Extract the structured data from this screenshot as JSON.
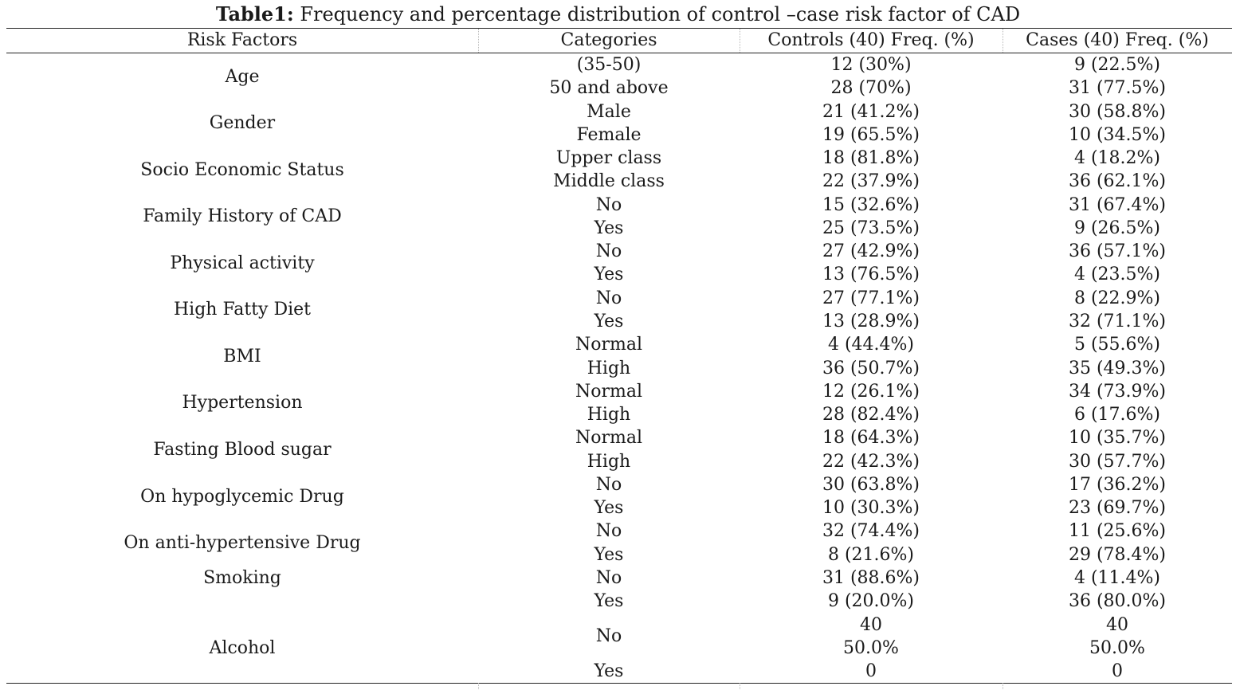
{
  "table": {
    "caption_label": "Table1:",
    "caption_text": " Frequency and percentage distribution of control –case risk factor of CAD",
    "headers": [
      "Risk Factors",
      "Categories",
      "Controls (40) Freq. (%)",
      "Cases (40) Freq. (%)"
    ],
    "groups": [
      {
        "factor": "Age",
        "rows": [
          {
            "category": "(35-50)",
            "controls": "12 (30%)",
            "cases": "9 (22.5%)"
          },
          {
            "category": "50 and above",
            "controls": "28 (70%)",
            "cases": "31 (77.5%)"
          }
        ]
      },
      {
        "factor": "Gender",
        "rows": [
          {
            "category": "Male",
            "controls": "21 (41.2%)",
            "cases": "30 (58.8%)"
          },
          {
            "category": "Female",
            "controls": "19 (65.5%)",
            "cases": "10 (34.5%)"
          }
        ]
      },
      {
        "factor": "Socio Economic Status",
        "rows": [
          {
            "category": "Upper class",
            "controls": "18 (81.8%)",
            "cases": "4 (18.2%)"
          },
          {
            "category": "Middle class",
            "controls": "22 (37.9%)",
            "cases": "36 (62.1%)"
          }
        ]
      },
      {
        "factor": "Family History of CAD",
        "rows": [
          {
            "category": "No",
            "controls": "15 (32.6%)",
            "cases": "31 (67.4%)"
          },
          {
            "category": "Yes",
            "controls": "25 (73.5%)",
            "cases": "9 (26.5%)"
          }
        ]
      },
      {
        "factor": "Physical activity",
        "rows": [
          {
            "category": "No",
            "controls": "27 (42.9%)",
            "cases": "36 (57.1%)"
          },
          {
            "category": "Yes",
            "controls": "13 (76.5%)",
            "cases": "4 (23.5%)"
          }
        ]
      },
      {
        "factor": "High Fatty Diet",
        "rows": [
          {
            "category": "No",
            "controls": "27 (77.1%)",
            "cases": "8 (22.9%)"
          },
          {
            "category": "Yes",
            "controls": "13 (28.9%)",
            "cases": "32 (71.1%)"
          }
        ]
      },
      {
        "factor": "BMI",
        "rows": [
          {
            "category": "Normal",
            "controls": "4 (44.4%)",
            "cases": "5 (55.6%)"
          },
          {
            "category": "High",
            "controls": "36 (50.7%)",
            "cases": "35 (49.3%)"
          }
        ]
      },
      {
        "factor": "Hypertension",
        "rows": [
          {
            "category": "Normal",
            "controls": "12 (26.1%)",
            "cases": "34 (73.9%)"
          },
          {
            "category": "High",
            "controls": "28 (82.4%)",
            "cases": "6 (17.6%)"
          }
        ]
      },
      {
        "factor": "Fasting Blood sugar",
        "rows": [
          {
            "category": "Normal",
            "controls": "18 (64.3%)",
            "cases": "10 (35.7%)"
          },
          {
            "category": "High",
            "controls": "22 (42.3%)",
            "cases": "30 (57.7%)"
          }
        ]
      },
      {
        "factor": "On hypoglycemic Drug",
        "rows": [
          {
            "category": "No",
            "controls": "30 (63.8%)",
            "cases": "17 (36.2%)"
          },
          {
            "category": "Yes",
            "controls": "10 (30.3%)",
            "cases": "23 (69.7%)"
          }
        ]
      },
      {
        "factor": "On anti-hypertensive Drug",
        "rows": [
          {
            "category": "No",
            "controls": "32 (74.4%)",
            "cases": "11 (25.6%)"
          },
          {
            "category": "Yes",
            "controls": "8 (21.6%)",
            "cases": "29 (78.4%)"
          }
        ]
      },
      {
        "factor": "Smoking",
        "rows": [
          {
            "category": "No",
            "controls": "31 (88.6%)",
            "cases": "4 (11.4%)"
          },
          {
            "category": "Yes",
            "controls": "9 (20.0%)",
            "cases": "36 (80.0%)"
          }
        ]
      }
    ],
    "alcohol": {
      "factor": "Alcohol",
      "no_category": "No",
      "no_controls": [
        "40",
        "50.0%"
      ],
      "no_cases": [
        "40",
        "50.0%"
      ],
      "yes_category": "Yes",
      "yes_controls": "0",
      "yes_cases": "0"
    }
  }
}
